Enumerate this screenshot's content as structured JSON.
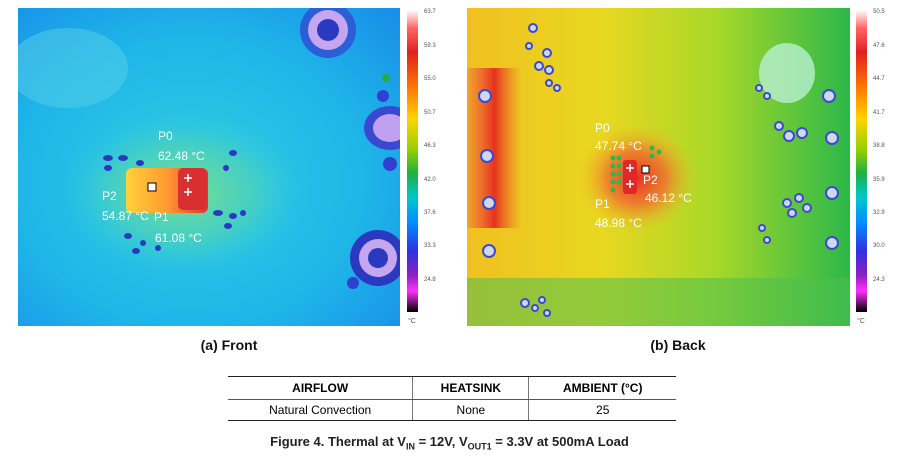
{
  "front": {
    "caption": "(a) Front",
    "points": [
      {
        "name": "P0",
        "temp": "62.48 °C"
      },
      {
        "name": "P2",
        "temp": "54.87 °C"
      },
      {
        "name": "P1",
        "temp": "61.08 °C"
      }
    ],
    "scale": [
      "63.7",
      "59.3",
      "55.0",
      "50.7",
      "46.3",
      "42.0",
      "37.6",
      "33.3",
      "24.8"
    ],
    "scale_unit": "°C"
  },
  "back": {
    "caption": "(b) Back",
    "points": [
      {
        "name": "P0",
        "temp": "47.74 °C"
      },
      {
        "name": "P2",
        "temp": "46.12 °C"
      },
      {
        "name": "P1",
        "temp": "48.98 °C"
      }
    ],
    "scale": [
      "50.5",
      "47.6",
      "44.7",
      "41.7",
      "38.8",
      "35.9",
      "32.9",
      "30.0",
      "24.3"
    ],
    "scale_unit": "°C"
  },
  "conditions": {
    "headers": [
      "AIRFLOW",
      "HEATSINK",
      "AMBIENT (°C)"
    ],
    "row": [
      "Natural Convection",
      "None",
      "25"
    ]
  },
  "figure": {
    "prefix": "Figure 4. Thermal at V",
    "vin_sub": "IN",
    "mid": " = 12V, V",
    "vout_sub": "OUT1",
    "suffix": " = 3.3V at 500mA Load"
  }
}
